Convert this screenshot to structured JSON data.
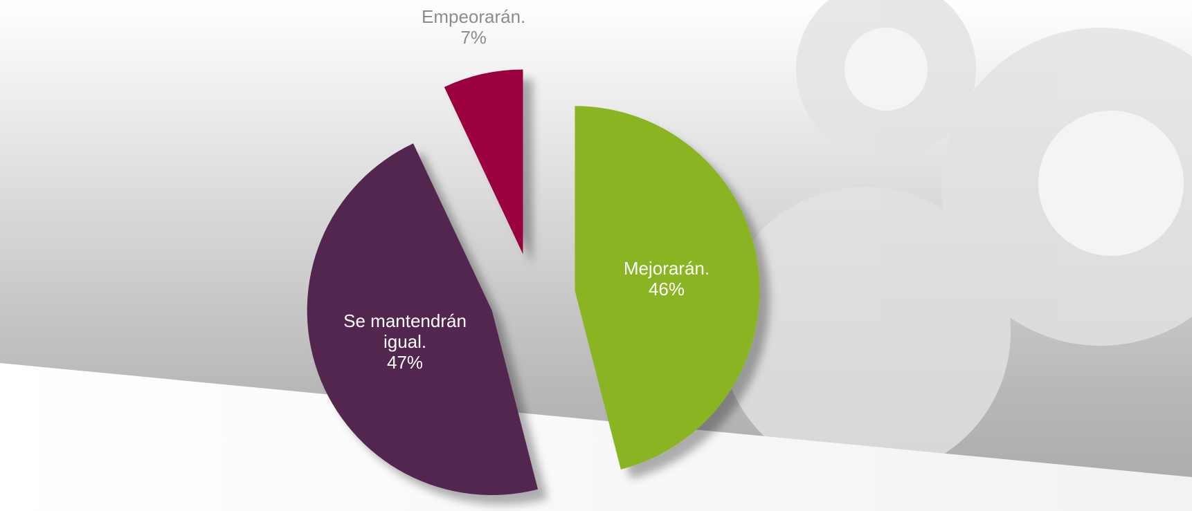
{
  "chart_data": {
    "type": "pie",
    "categories": [
      "Mejorarán.",
      "Se mantendrán igual.",
      "Empeorarán."
    ],
    "values": [
      46,
      47,
      7
    ],
    "value_labels": [
      "46%",
      "47%",
      "7%"
    ],
    "colors": [
      "#8ab420",
      "#52274f",
      "#99003d"
    ]
  }
}
